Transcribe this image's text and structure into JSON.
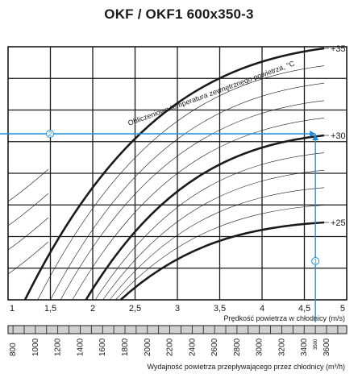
{
  "title": "OKF / OKF1 600x350-3",
  "chart_data": {
    "type": "line",
    "title": "OKF / OKF1 600x350-3",
    "x_axis": {
      "label": "Prędkość powietrza w chłodnicy (m/s)",
      "min": 1,
      "max": 5,
      "ticks": [
        "1",
        "1,5",
        "2",
        "2,5",
        "3",
        "3,5",
        "4",
        "4,5",
        "5"
      ],
      "tick_values": [
        1,
        1.5,
        2,
        2.5,
        3,
        3.5,
        4,
        4.5,
        5
      ]
    },
    "flow_axis": {
      "label": "Wydajność powietrza przepływającego przez chłodnicy (m³/h)",
      "min": 756,
      "max": 3780,
      "ticks": [
        "800",
        "1000",
        "1200",
        "1400",
        "1600",
        "1800",
        "2000",
        "2200",
        "2400",
        "2600",
        "2800",
        "3000",
        "3200",
        "3400",
        "3600"
      ],
      "tick_values": [
        800,
        1000,
        1200,
        1400,
        1600,
        1800,
        2000,
        2200,
        2400,
        2600,
        2800,
        3000,
        3200,
        3400,
        3600
      ],
      "highlight": "3500",
      "highlight_value": 3500
    },
    "curve_caption": "Obliczeniowa temperatura zewnętrznego powietrza, °C",
    "curves": [
      {
        "name": "+35",
        "labeled": true,
        "major": true,
        "start_x": 1.2
      },
      {
        "name": "",
        "labeled": false,
        "major": false,
        "start_x": 1.35
      },
      {
        "name": "",
        "labeled": false,
        "major": false,
        "start_x": 1.5
      },
      {
        "name": "",
        "labeled": false,
        "major": false,
        "start_x": 1.62
      },
      {
        "name": "",
        "labeled": false,
        "major": false,
        "start_x": 1.76
      },
      {
        "name": "+30",
        "labeled": true,
        "major": true,
        "start_x": 1.92
      },
      {
        "name": "",
        "labeled": false,
        "major": false,
        "start_x": 2.03
      },
      {
        "name": "",
        "labeled": false,
        "major": false,
        "start_x": 2.12
      },
      {
        "name": "",
        "labeled": false,
        "major": false,
        "start_x": 2.2
      },
      {
        "name": "",
        "labeled": false,
        "major": false,
        "start_x": 2.27
      },
      {
        "name": "+25",
        "labeled": true,
        "major": true,
        "start_x": 2.33
      }
    ],
    "readout": {
      "flow": 3500,
      "velocity": 4.63,
      "curve": "+30",
      "marker_1": "1",
      "marker_2": "2"
    },
    "colors": {
      "guide": "#1f8fd6",
      "ink": "#1a1a1a",
      "strip": "#d0d0d0"
    },
    "grid": true
  }
}
